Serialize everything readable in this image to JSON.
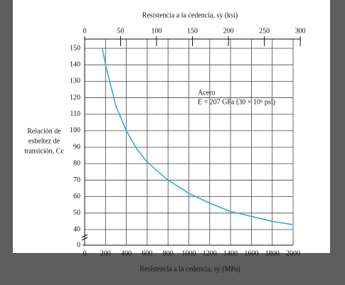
{
  "chart_data": {
    "type": "line",
    "x_top_label": "Resistencia a la cedencia, sy (ksi)",
    "x_label": "Resistencia a la cedencia, sy (MPa)",
    "y_label": [
      "Relación de",
      "esbeltez de",
      "transición, Cc"
    ],
    "annotation": [
      "Acero",
      "E = 207 GPa (30 × 10⁶ psi)"
    ],
    "x": [
      170,
      200,
      300,
      400,
      500,
      600,
      800,
      1000,
      1200,
      1400,
      1600,
      1800,
      2000
    ],
    "series": [
      {
        "name": "Acero",
        "color": "#3aaec6",
        "values": [
          150,
          140,
          115,
          100,
          89,
          81,
          70,
          62,
          56,
          51,
          48,
          45,
          43
        ]
      }
    ],
    "xlim": [
      0,
      2000
    ],
    "xticks": [
      0,
      200,
      400,
      600,
      800,
      1000,
      1200,
      1400,
      1600,
      1800,
      2000
    ],
    "x2lim": [
      0,
      290
    ],
    "x2ticks": [
      0,
      50,
      100,
      150,
      200,
      250,
      300
    ],
    "ylim": [
      0,
      150
    ],
    "axis_break": [
      0,
      40
    ],
    "yticks": [
      0,
      40,
      50,
      60,
      70,
      80,
      90,
      100,
      110,
      120,
      130,
      140,
      150
    ],
    "grid": true
  }
}
